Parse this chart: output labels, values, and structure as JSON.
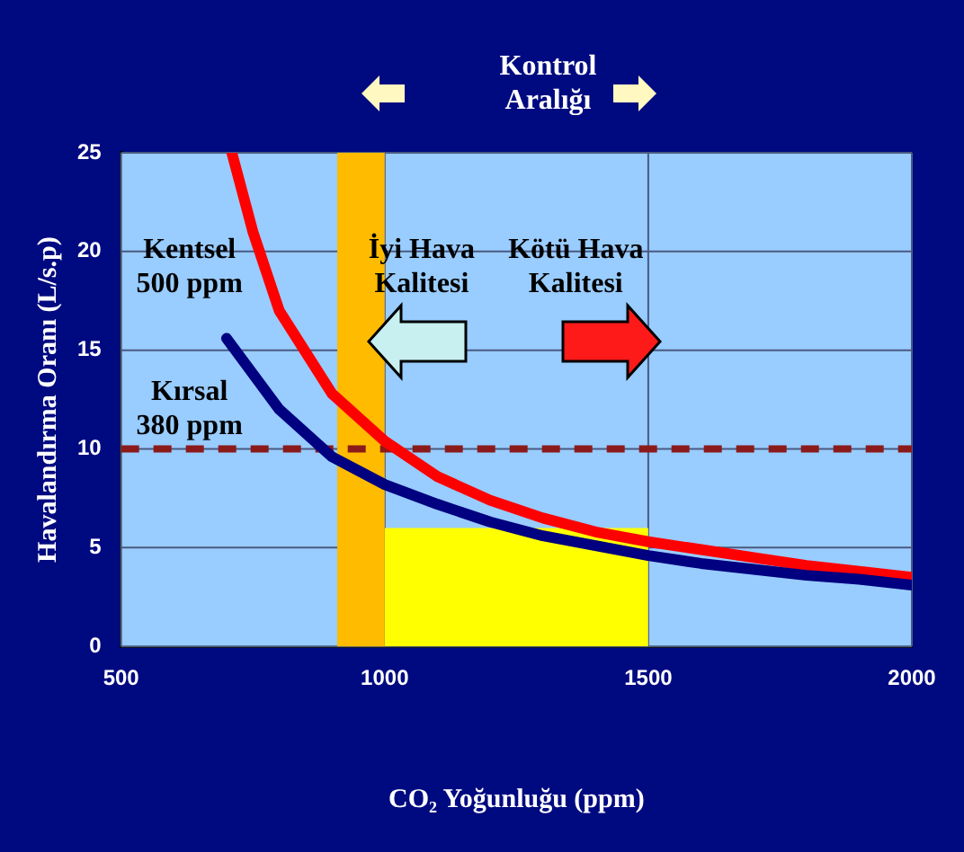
{
  "chart_data": {
    "type": "line",
    "xlabel": "CO₂ Yoğunluğu (ppm)",
    "ylabel": "Havalandırma Oranı (L/s.p)",
    "x": [
      710,
      750,
      800,
      900,
      1000,
      1100,
      1200,
      1300,
      1400,
      1500,
      1600,
      1700,
      1800,
      1900,
      2000
    ],
    "series": [
      {
        "type": "area",
        "color": "#ffff00",
        "x": [
          1000,
          1500
        ],
        "values": [
          6,
          6
        ]
      },
      {
        "name": "Kentsel\n500 ppm",
        "color": "#ff0000",
        "values": [
          25,
          21,
          17,
          12.8,
          10.4,
          8.6,
          7.4,
          6.5,
          5.8,
          5.3,
          4.9,
          4.5,
          4.1,
          3.8,
          3.5
        ]
      },
      {
        "name": "Kırsal\n380 ppm",
        "color": "#000080",
        "x": [
          700,
          800,
          900,
          1000,
          1100,
          1200,
          1300,
          1400,
          1500,
          1600,
          1700,
          1800,
          1900,
          2000
        ],
        "values": [
          15.6,
          12,
          9.6,
          8.2,
          7.2,
          6.3,
          5.6,
          5.1,
          4.6,
          4.2,
          3.9,
          3.6,
          3.4,
          3.1
        ]
      }
    ],
    "xlim": [
      500,
      2000
    ],
    "xticks": [
      500,
      1000,
      1500,
      2000
    ],
    "ylim": [
      0,
      25
    ],
    "yticks": [
      0,
      5,
      10,
      15,
      20,
      25
    ],
    "grid": true,
    "legend": false,
    "marker": "none",
    "line_style": "solid",
    "ref_lines": [
      {
        "axis": "y",
        "value": 10,
        "color": "#8b1a1a",
        "line_style": "dashed"
      }
    ],
    "bands": [
      {
        "axis": "x",
        "from": 910,
        "to": 1000,
        "color": "#ffbb00"
      }
    ],
    "annotations": [
      "Kontrol\nAralığı",
      "İyi Hava\nKalitesi",
      "Kötü Hava\nKalitesi"
    ]
  }
}
